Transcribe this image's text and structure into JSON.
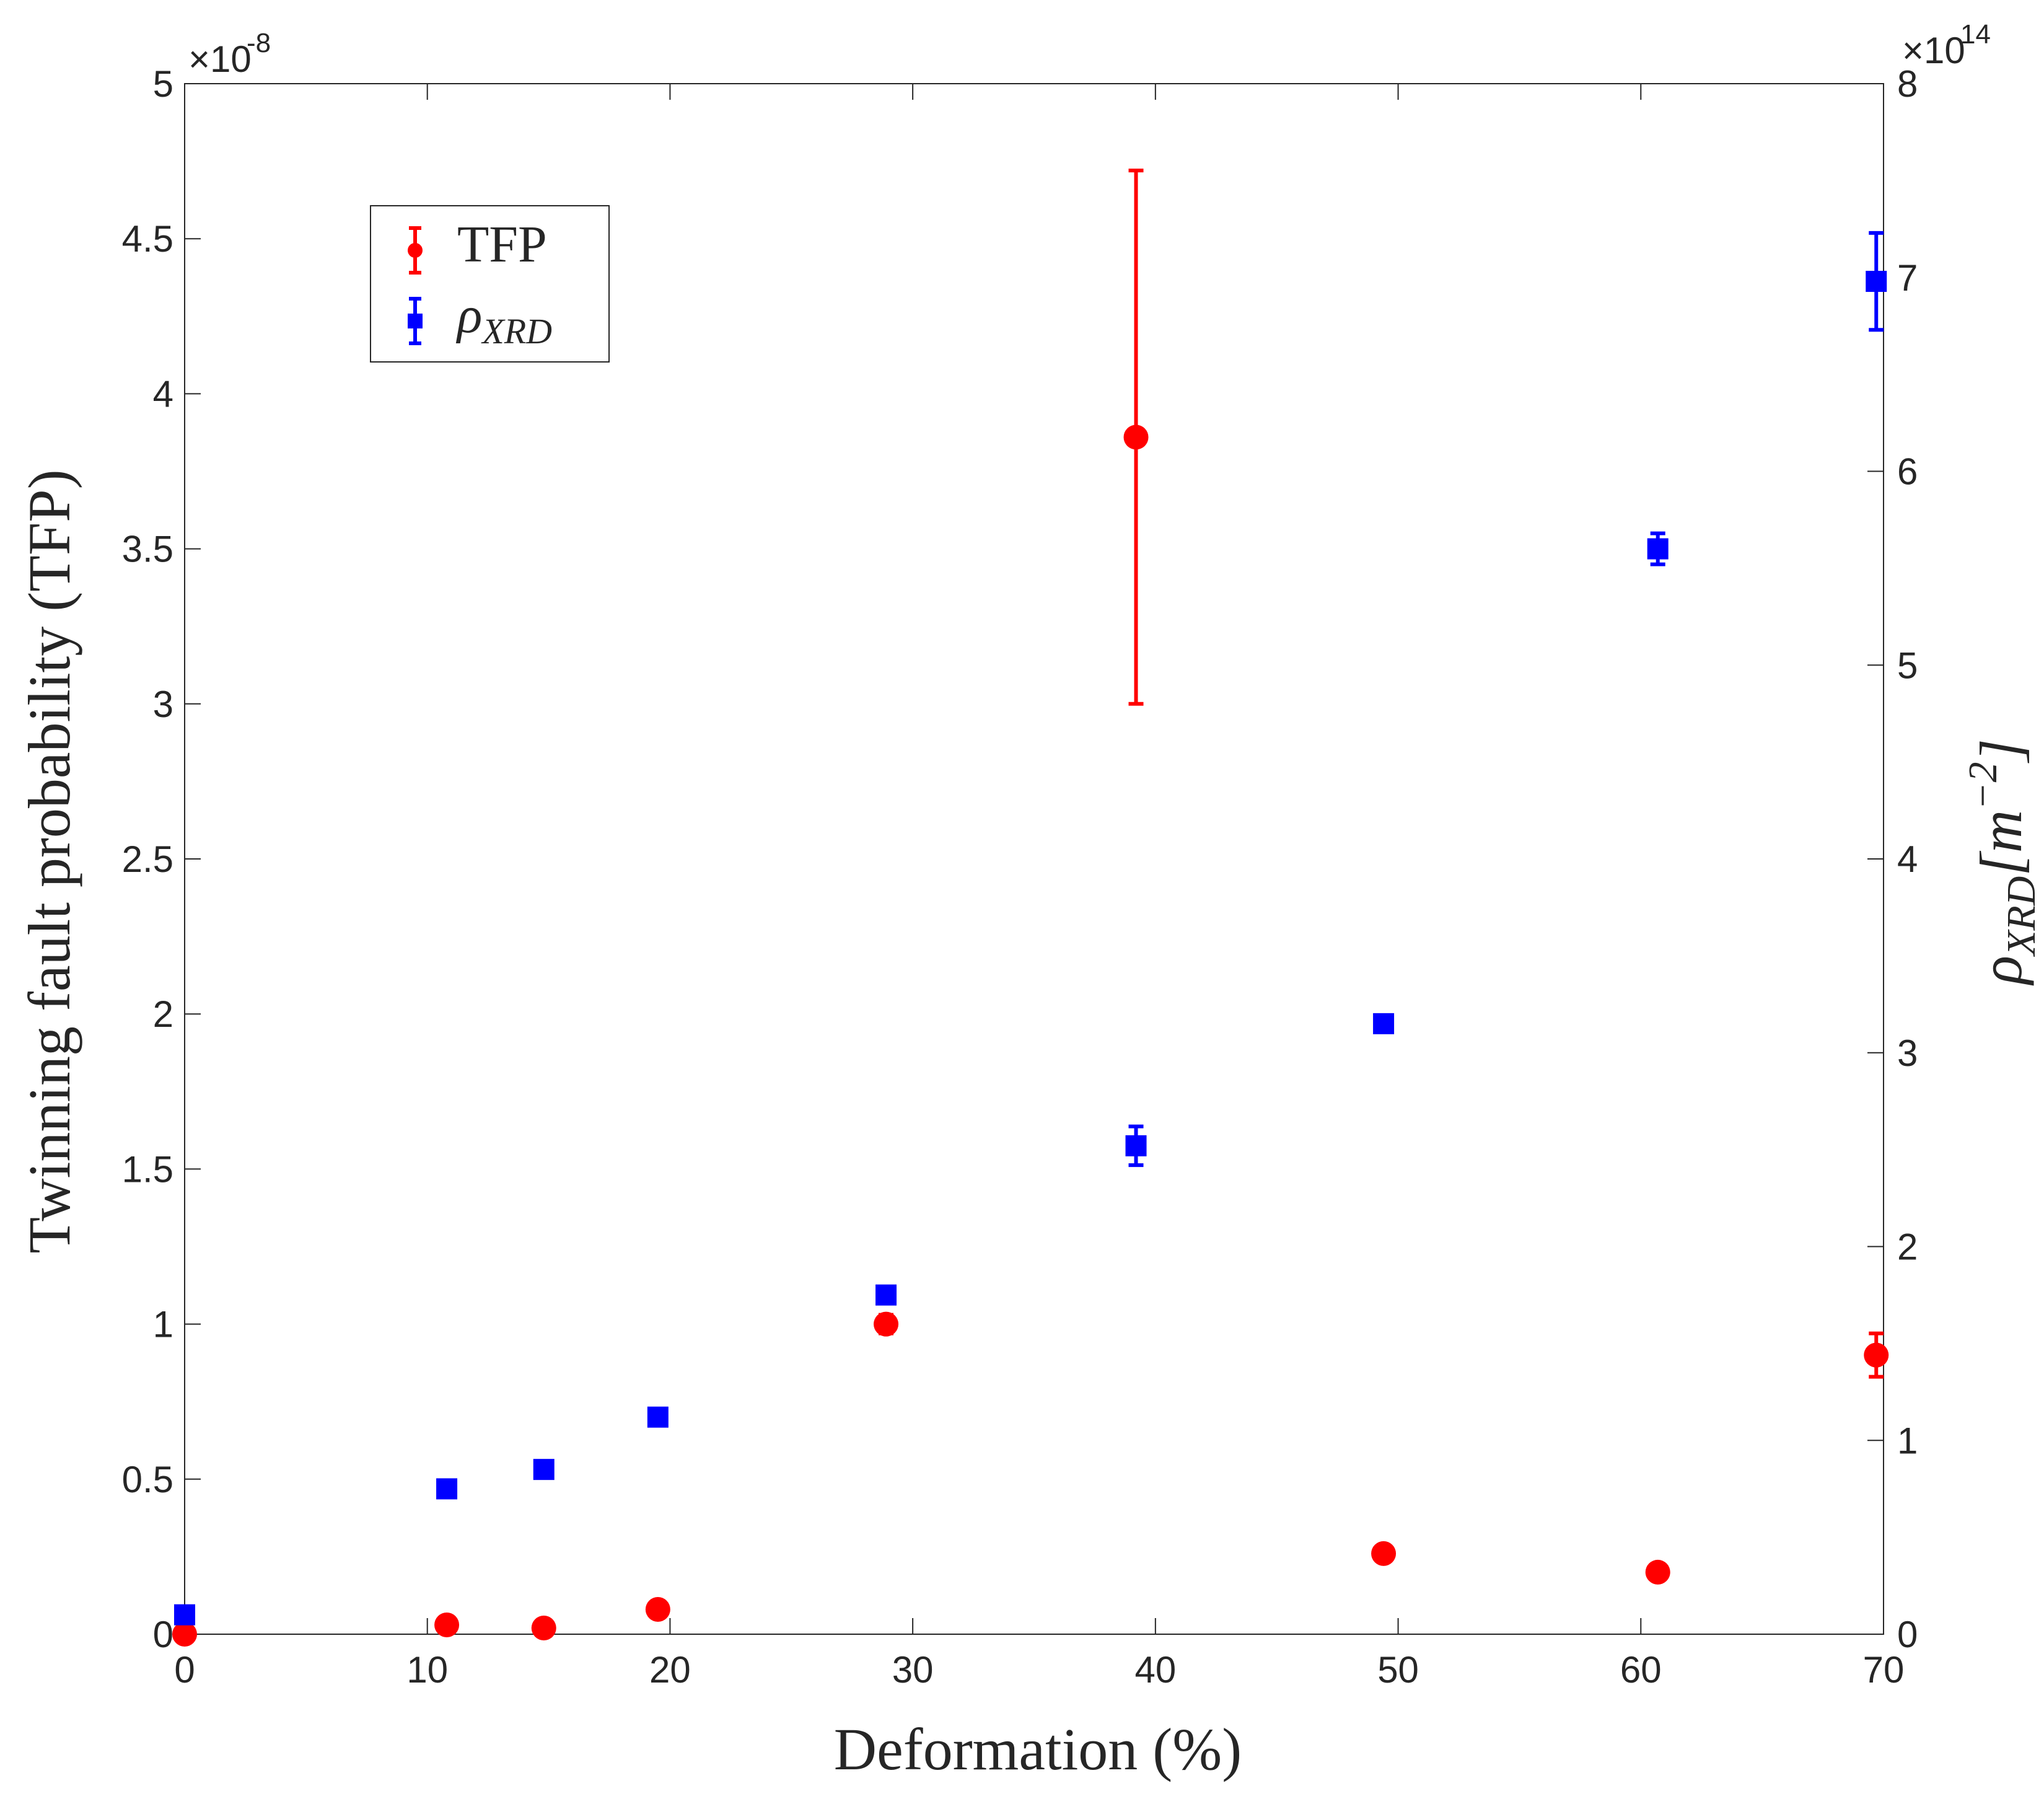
{
  "chart_data": {
    "type": "scatter",
    "x_axis": {
      "label": "Deformation (%)",
      "range": [
        0,
        70
      ],
      "ticks": [
        0,
        10,
        20,
        30,
        40,
        50,
        60,
        70
      ],
      "tick_labels": [
        "0",
        "10",
        "20",
        "30",
        "40",
        "50",
        "60",
        "70"
      ]
    },
    "y_left": {
      "label": "Twinning fault probability (TFP)",
      "range": [
        0,
        5
      ],
      "ticks": [
        0,
        0.5,
        1,
        1.5,
        2,
        2.5,
        3,
        3.5,
        4,
        4.5,
        5
      ],
      "tick_labels": [
        "0",
        "0.5",
        "1",
        "1.5",
        "2",
        "2.5",
        "3",
        "3.5",
        "4",
        "4.5",
        "5"
      ],
      "exponent_base": "×10",
      "exponent": "-8"
    },
    "y_right": {
      "label_symbol": "ρ",
      "label_sub": "XRD",
      "label_unit_open": "[m",
      "label_unit_exp": "−2",
      "label_unit_close": "]",
      "range": [
        0,
        8
      ],
      "ticks": [
        0,
        1,
        2,
        3,
        4,
        5,
        6,
        7,
        8
      ],
      "tick_labels": [
        "0",
        "1",
        "2",
        "3",
        "4",
        "5",
        "6",
        "7",
        "8"
      ],
      "exponent_base": "×10",
      "exponent": "14"
    },
    "legend": {
      "position": "upper-left",
      "entries": [
        {
          "key": "tfp",
          "label": "TFP"
        },
        {
          "key": "rho",
          "symbol": "ρ",
          "sub": "XRD"
        }
      ]
    },
    "series": [
      {
        "key": "tfp",
        "name": "TFP",
        "axis": "left",
        "marker": "circle",
        "color": "#ff0000",
        "x": [
          0,
          10.8,
          14.8,
          19.5,
          28.9,
          39.2,
          49.4,
          60.7,
          69.7
        ],
        "y": [
          0.0,
          0.03,
          0.02,
          0.08,
          1.0,
          3.86,
          0.26,
          0.2,
          0.9
        ],
        "err": [
          0.0,
          0.0,
          0.0,
          0.0,
          0.03,
          0.86,
          0.0,
          0.0,
          0.07
        ]
      },
      {
        "key": "rho",
        "name": "ρXRD",
        "axis": "right",
        "marker": "square",
        "color": "#0000ff",
        "x": [
          0,
          10.8,
          14.8,
          19.5,
          28.9,
          39.2,
          49.4,
          60.7,
          69.7
        ],
        "y": [
          0.1,
          0.75,
          0.85,
          1.12,
          1.75,
          2.52,
          3.15,
          5.6,
          6.98
        ],
        "err": [
          0.0,
          0.0,
          0.0,
          0.0,
          0.0,
          0.1,
          0.0,
          0.08,
          0.25
        ]
      }
    ]
  }
}
